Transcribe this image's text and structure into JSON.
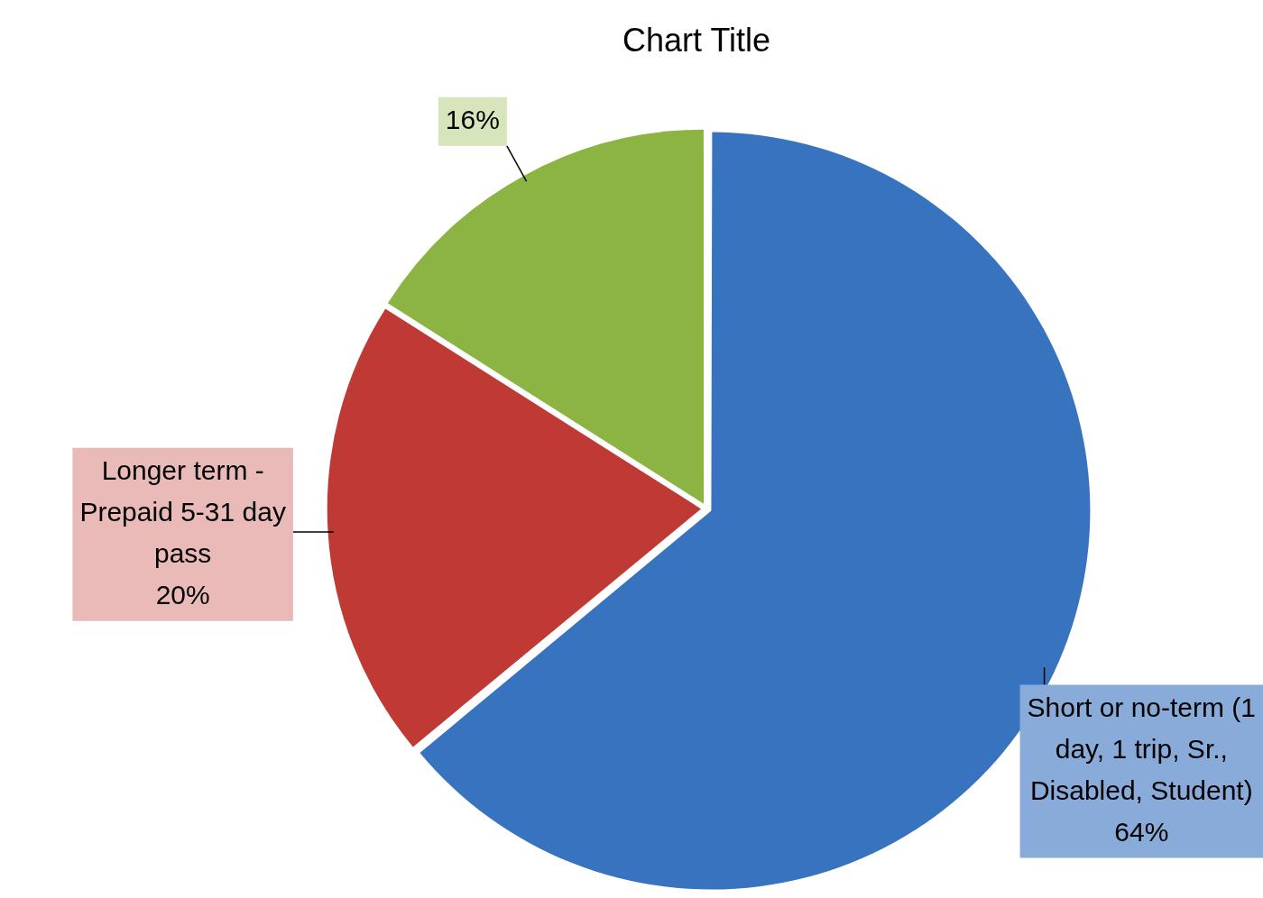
{
  "chart_data": {
    "type": "pie",
    "title": "Chart Title",
    "categories": [
      "Short or no-term (1 day, 1 trip, Sr., Disabled, Student)",
      "Longer term - Prepaid 5-31 day pass",
      null
    ],
    "values": [
      64,
      20,
      16
    ],
    "value_labels": [
      "64%",
      "20%",
      "16%"
    ],
    "colors": [
      "#3873c0",
      "#bf3a35",
      "#8cb443"
    ],
    "legend": false
  }
}
